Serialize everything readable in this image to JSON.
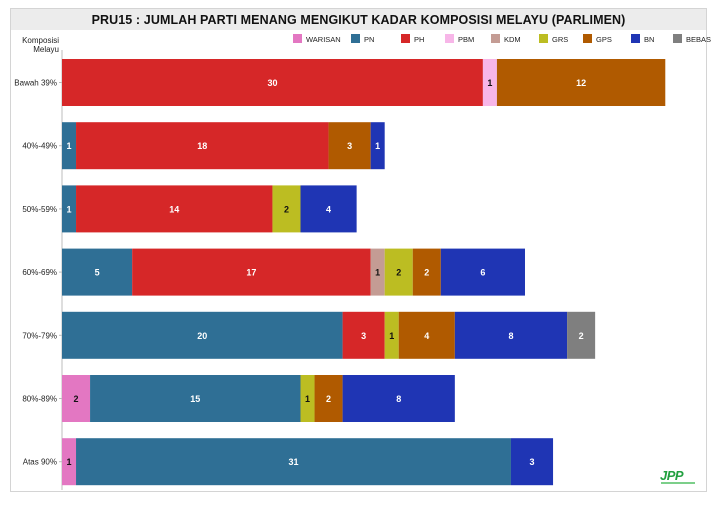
{
  "chart_data": {
    "type": "bar",
    "orientation": "horizontal",
    "stacked": true,
    "title": "PRU15 : JUMLAH PARTI MENANG MENGIKUT KADAR KOMPOSISI MELAYU (PARLIMEN)",
    "ylabel": "Komposisi Melayu",
    "legend_position": "top-right",
    "categories": [
      "Bawah 39%",
      "40%-49%",
      "50%-59%",
      "60%-69%",
      "70%-79%",
      "80%-89%",
      "Atas 90%"
    ],
    "series": [
      {
        "name": "WARISAN",
        "color": "#e377c2",
        "values": [
          0,
          0,
          0,
          0,
          0,
          2,
          1
        ]
      },
      {
        "name": "PN",
        "color": "#2f6f95",
        "values": [
          0,
          1,
          1,
          5,
          20,
          15,
          31
        ]
      },
      {
        "name": "PH",
        "color": "#d62728",
        "values": [
          30,
          18,
          14,
          17,
          3,
          0,
          0
        ]
      },
      {
        "name": "PBM",
        "color": "#f7b6e8",
        "values": [
          1,
          0,
          0,
          0,
          0,
          0,
          0
        ]
      },
      {
        "name": "KDM",
        "color": "#c49c94",
        "values": [
          0,
          0,
          0,
          1,
          0,
          0,
          0
        ]
      },
      {
        "name": "GRS",
        "color": "#bcbd22",
        "values": [
          0,
          0,
          2,
          2,
          1,
          1,
          0
        ]
      },
      {
        "name": "GPS",
        "color": "#b05a00",
        "values": [
          12,
          3,
          0,
          2,
          4,
          2,
          0
        ]
      },
      {
        "name": "BN",
        "color": "#1f35b4",
        "values": [
          0,
          1,
          4,
          6,
          8,
          8,
          3
        ]
      },
      {
        "name": "BEBAS",
        "color": "#7f7f7f",
        "values": [
          0,
          0,
          0,
          0,
          2,
          0,
          0
        ]
      }
    ],
    "xlim": [
      0,
      44
    ],
    "grid": false
  },
  "logo_text": "JPP"
}
